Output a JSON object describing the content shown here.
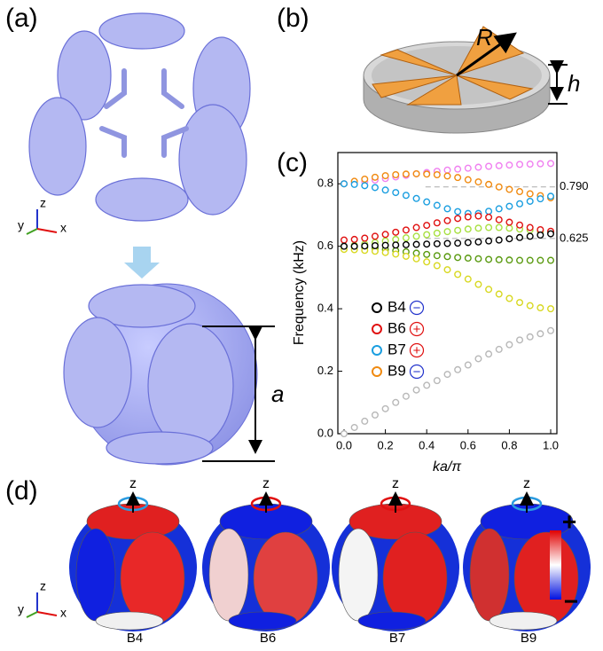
{
  "panels": {
    "a": "(a)",
    "b": "(b)",
    "c": "(c)",
    "d": "(d)"
  },
  "panel_a": {
    "dimension_label": "a",
    "axes": {
      "z": "z",
      "y": "y",
      "x": "x"
    }
  },
  "panel_b": {
    "radius_label": "R",
    "height_label": "h"
  },
  "panel_d": {
    "modes": [
      {
        "label": "B4",
        "axis_label": "z"
      },
      {
        "label": "B6",
        "axis_label": "z"
      },
      {
        "label": "B7",
        "axis_label": "z"
      },
      {
        "label": "B9",
        "axis_label": "z"
      }
    ],
    "colorbar": {
      "max_label": "+",
      "min_label": "−"
    },
    "axes": {
      "z": "z",
      "y": "y",
      "x": "x"
    }
  },
  "chart_data": {
    "type": "scatter",
    "x_label": "ka/π",
    "y_label": "Frequency (kHz)",
    "xlim": [
      -0.03,
      1.03
    ],
    "ylim": [
      0,
      0.9
    ],
    "xticks": [
      {
        "value": 0,
        "label": "0.0"
      },
      0.2,
      0.4,
      0.6,
      0.8,
      {
        "value": 1,
        "label": "1.0"
      }
    ],
    "yticks": [
      {
        "value": 0,
        "label": "0.0"
      },
      0.2,
      0.4,
      0.6,
      0.8
    ],
    "reference_lines": [
      {
        "value": 0.79,
        "label": "0.790"
      },
      {
        "value": 0.625,
        "label": "0.625"
      }
    ],
    "x": [
      0,
      0.05,
      0.1,
      0.15,
      0.2,
      0.25,
      0.3,
      0.35,
      0.4,
      0.45,
      0.5,
      0.55,
      0.6,
      0.65,
      0.7,
      0.75,
      0.8,
      0.85,
      0.9,
      0.95,
      1
    ],
    "series": [
      {
        "name": "B4",
        "color": "#000000",
        "sign": "−",
        "sign_color": "#2233cc",
        "values": [
          0.6,
          0.6,
          0.601,
          0.602,
          0.603,
          0.604,
          0.605,
          0.606,
          0.607,
          0.608,
          0.609,
          0.61,
          0.612,
          0.614,
          0.617,
          0.62,
          0.624,
          0.628,
          0.632,
          0.636,
          0.64
        ]
      },
      {
        "name": "B6",
        "color": "#e01010",
        "sign": "+",
        "sign_color": "#e01010",
        "values": [
          0.62,
          0.622,
          0.626,
          0.632,
          0.638,
          0.645,
          0.652,
          0.66,
          0.667,
          0.675,
          0.682,
          0.689,
          0.694,
          0.697,
          0.693,
          0.685,
          0.677,
          0.668,
          0.66,
          0.653,
          0.648
        ]
      },
      {
        "name": "B7",
        "color": "#1a9ee0",
        "sign": "+",
        "sign_color": "#e01010",
        "values": [
          0.8,
          0.798,
          0.794,
          0.788,
          0.78,
          0.772,
          0.763,
          0.753,
          0.742,
          0.731,
          0.72,
          0.711,
          0.705,
          0.705,
          0.712,
          0.72,
          0.728,
          0.736,
          0.744,
          0.752,
          0.76
        ]
      },
      {
        "name": "B9",
        "color": "#f08a10",
        "sign": "−",
        "sign_color": "#2233cc",
        "values": [
          0.8,
          0.808,
          0.815,
          0.821,
          0.826,
          0.829,
          0.831,
          0.832,
          0.831,
          0.829,
          0.825,
          0.82,
          0.813,
          0.806,
          0.798,
          0.79,
          0.782,
          0.775,
          0.768,
          0.762,
          0.755
        ]
      },
      {
        "color": "#b8b8b8",
        "values": [
          0,
          0.02,
          0.04,
          0.06,
          0.08,
          0.1,
          0.12,
          0.14,
          0.155,
          0.17,
          0.19,
          0.205,
          0.22,
          0.24,
          0.255,
          0.27,
          0.285,
          0.3,
          0.31,
          0.32,
          0.33
        ]
      },
      {
        "color": "#d8d820",
        "values": [
          0.59,
          0.589,
          0.587,
          0.584,
          0.58,
          0.575,
          0.568,
          0.56,
          0.55,
          0.538,
          0.525,
          0.51,
          0.495,
          0.478,
          0.462,
          0.447,
          0.433,
          0.42,
          0.41,
          0.403,
          0.4
        ]
      },
      {
        "color": "#5a9a10",
        "values": [
          0.6,
          0.599,
          0.597,
          0.594,
          0.59,
          0.586,
          0.582,
          0.578,
          0.574,
          0.57,
          0.567,
          0.564,
          0.562,
          0.56,
          0.558,
          0.557,
          0.556,
          0.555,
          0.555,
          0.555,
          0.555
        ]
      },
      {
        "color": "#a8e040",
        "values": [
          0.6,
          0.603,
          0.607,
          0.612,
          0.617,
          0.622,
          0.627,
          0.632,
          0.637,
          0.642,
          0.647,
          0.651,
          0.655,
          0.658,
          0.66,
          0.66,
          0.658,
          0.655,
          0.652,
          0.648,
          0.645
        ]
      },
      {
        "color": "#f080f0",
        "values": [
          0.8,
          0.803,
          0.807,
          0.812,
          0.817,
          0.822,
          0.827,
          0.832,
          0.836,
          0.84,
          0.844,
          0.847,
          0.85,
          0.853,
          0.856,
          0.858,
          0.86,
          0.862,
          0.863,
          0.864,
          0.865
        ]
      }
    ]
  }
}
